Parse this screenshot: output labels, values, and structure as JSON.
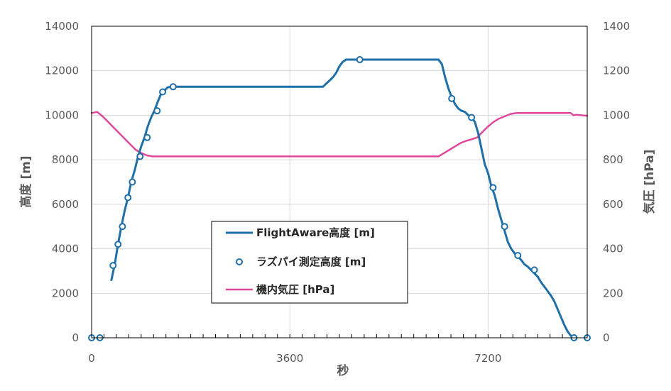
{
  "chart_data": {
    "type": "line",
    "title": "",
    "xlabel": "秒",
    "ylabel": "高度 [m]",
    "y2label": "気圧 [hPa]",
    "xlim": [
      0,
      9000
    ],
    "ylim": [
      0,
      14000
    ],
    "y2lim": [
      0,
      1400
    ],
    "x_ticks": [
      0,
      3600,
      7200
    ],
    "y_ticks": [
      0,
      2000,
      4000,
      6000,
      8000,
      10000,
      12000,
      14000
    ],
    "y2_ticks": [
      0,
      200,
      400,
      600,
      800,
      1000,
      1200,
      1400
    ],
    "grid": true,
    "legend_position": "center",
    "colors": {
      "altitude_line": "#1f6fa8",
      "raspi_markers": "#1f6fa8",
      "pressure_line": "#e0489a",
      "grid": "#d9d9d9",
      "plot_border": "#000000"
    },
    "series": [
      {
        "name": "FlightAware高度 [m]",
        "axis": "left",
        "style": "line",
        "x": [
          360,
          420,
          480,
          540,
          600,
          660,
          720,
          780,
          840,
          900,
          960,
          1020,
          1080,
          1140,
          1200,
          1260,
          1320,
          1380,
          1440,
          1500,
          1560,
          4200,
          4380,
          4440,
          4500,
          4560,
          4620,
          4680,
          4740,
          6300,
          6360,
          6420,
          6480,
          6540,
          6600,
          6660,
          6720,
          6780,
          6840,
          6900,
          6960,
          7020,
          7080,
          7140,
          7200,
          7260,
          7320,
          7380,
          7440,
          7500,
          7560,
          7620,
          7680,
          7740,
          7800,
          7860,
          7920,
          7980,
          8040,
          8100,
          8160,
          8220,
          8280,
          8340,
          8400,
          8460,
          8520,
          8580,
          8640,
          8700,
          8760
        ],
        "y": [
          2600,
          3300,
          4200,
          5000,
          5700,
          6300,
          7000,
          7500,
          8100,
          8600,
          9000,
          9500,
          9900,
          10200,
          10600,
          10950,
          11100,
          11250,
          11280,
          11280,
          11280,
          11280,
          11700,
          11900,
          12200,
          12400,
          12500,
          12500,
          12500,
          12500,
          12300,
          11700,
          11200,
          10800,
          10500,
          10300,
          10200,
          10150,
          10000,
          9900,
          9700,
          9200,
          8500,
          7800,
          7400,
          6800,
          6400,
          5800,
          5300,
          4800,
          4300,
          4000,
          3800,
          3650,
          3500,
          3300,
          3200,
          3050,
          2900,
          2750,
          2500,
          2300,
          2100,
          1900,
          1650,
          1300,
          950,
          600,
          300,
          100,
          0
        ]
      },
      {
        "name": "ラズパイ測定高度 [m]",
        "axis": "left",
        "style": "markers",
        "x": [
          0,
          150,
          390,
          480,
          560,
          660,
          740,
          880,
          1010,
          1190,
          1290,
          1480,
          4870,
          6540,
          6900,
          7290,
          7500,
          7740,
          8040,
          8760,
          9000
        ],
        "y": [
          0,
          0,
          3250,
          4200,
          5000,
          6300,
          7000,
          8150,
          9000,
          10200,
          11050,
          11280,
          12500,
          10750,
          9900,
          6750,
          5000,
          3700,
          3050,
          0,
          0
        ]
      },
      {
        "name": "機内気圧 [hPa]",
        "axis": "right",
        "style": "line",
        "x": [
          0,
          100,
          200,
          300,
          400,
          500,
          600,
          700,
          800,
          900,
          1000,
          1100,
          2400,
          6000,
          6300,
          6400,
          6500,
          6600,
          6700,
          6800,
          6900,
          7000,
          7100,
          7200,
          7300,
          7400,
          7500,
          7600,
          7700,
          8700,
          8750,
          8800,
          9000
        ],
        "y": [
          1010,
          1015,
          995,
          970,
          945,
          920,
          895,
          870,
          845,
          830,
          820,
          815,
          815,
          815,
          815,
          830,
          845,
          860,
          875,
          885,
          892,
          900,
          925,
          950,
          970,
          985,
          995,
          1005,
          1010,
          1010,
          1000,
          1002,
          998
        ]
      }
    ]
  }
}
